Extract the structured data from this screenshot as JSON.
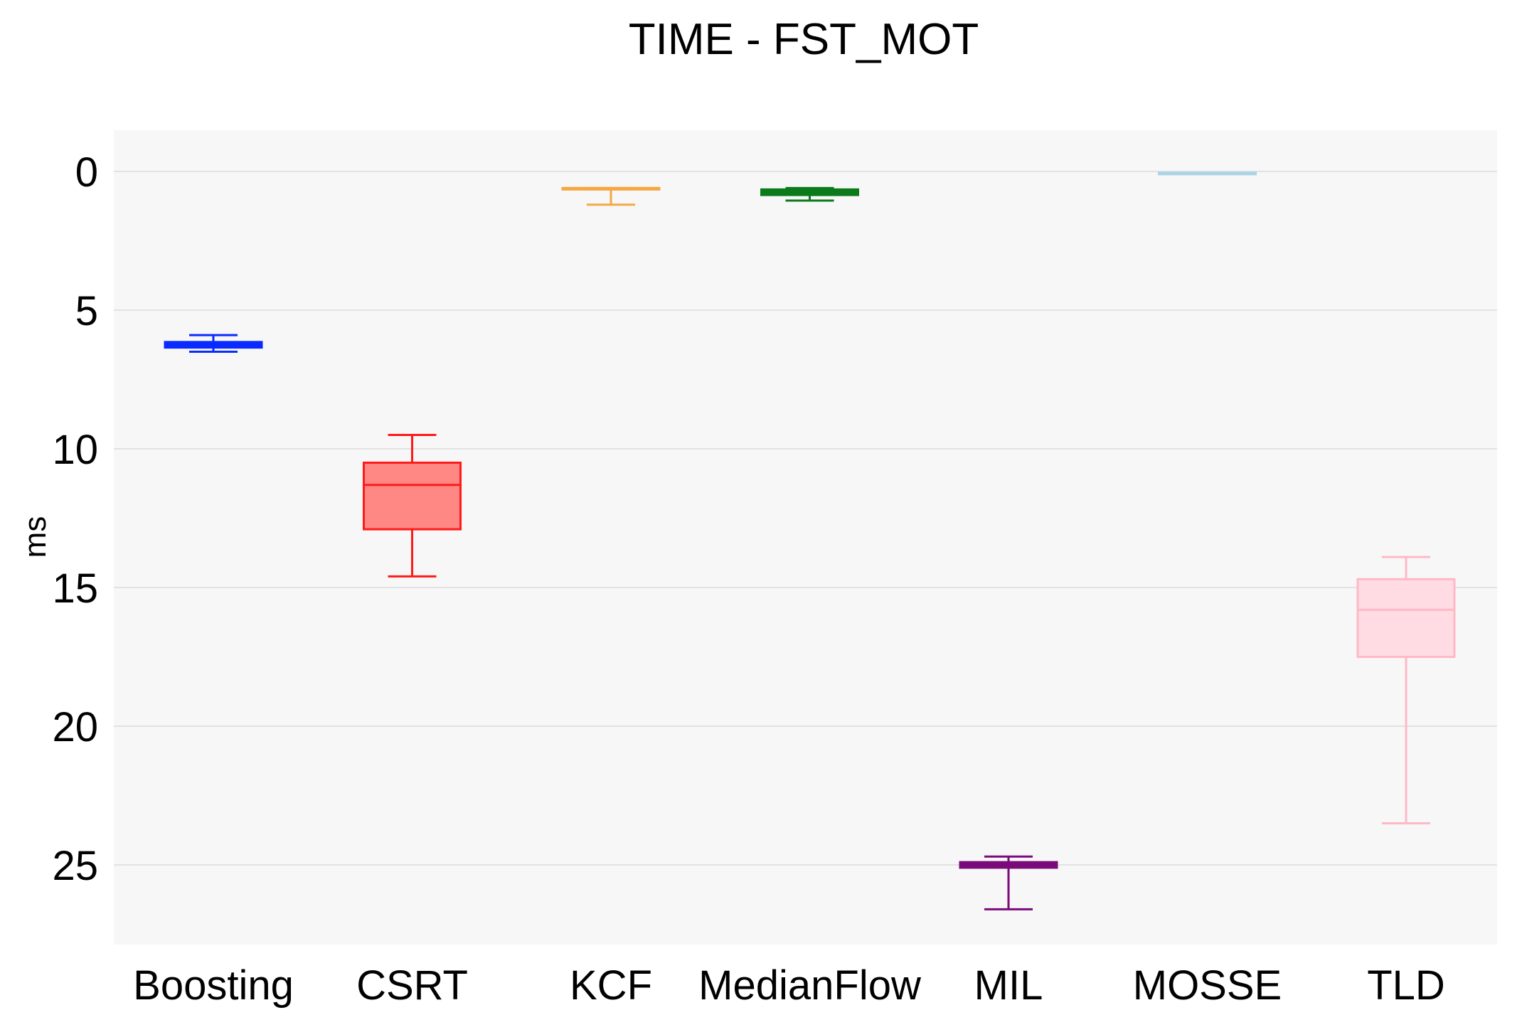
{
  "chart_data": {
    "type": "box",
    "title": "TIME - FST_MOT",
    "xlabel": "",
    "ylabel": "ms",
    "ylim": [
      0,
      28
    ],
    "y_inverted": true,
    "yticks": [
      0,
      5,
      10,
      15,
      20,
      25
    ],
    "grid": true,
    "categories": [
      "Boosting",
      "CSRT",
      "KCF",
      "MedianFlow",
      "MIL",
      "MOSSE",
      "TLD"
    ],
    "boxes": [
      {
        "category": "Boosting",
        "color": "#0a2bff",
        "fill": "#0a2bff",
        "whisker_low": 5.9,
        "q1": 6.15,
        "median": 6.25,
        "q3": 6.35,
        "whisker_high": 6.5
      },
      {
        "category": "CSRT",
        "color": "#ff1a1a",
        "fill": "#ff8884",
        "whisker_low": 9.5,
        "q1": 10.5,
        "median": 11.3,
        "q3": 12.9,
        "whisker_high": 14.6
      },
      {
        "category": "KCF",
        "color": "#f5a742",
        "fill": "#f5a742",
        "whisker_low": 0.6,
        "q1": 0.6,
        "median": 0.6,
        "q3": 0.62,
        "whisker_high": 1.2
      },
      {
        "category": "MedianFlow",
        "color": "#0a7a1a",
        "fill": "#0a7a1a",
        "whisker_low": 0.6,
        "q1": 0.65,
        "median": 0.72,
        "q3": 0.85,
        "whisker_high": 1.05
      },
      {
        "category": "MIL",
        "color": "#7a0a7a",
        "fill": "#7a0a7a",
        "whisker_low": 24.7,
        "q1": 24.9,
        "median": 25.0,
        "q3": 25.1,
        "whisker_high": 26.6
      },
      {
        "category": "MOSSE",
        "color": "#a8d4e6",
        "fill": "#a8d4e6",
        "whisker_low": 0.05,
        "q1": 0.05,
        "median": 0.05,
        "q3": 0.05,
        "whisker_high": 0.05
      },
      {
        "category": "TLD",
        "color": "#ffb8c6",
        "fill": "#ffdce3",
        "whisker_low": 13.9,
        "q1": 14.7,
        "median": 15.8,
        "q3": 17.5,
        "whisker_high": 23.5
      }
    ]
  }
}
